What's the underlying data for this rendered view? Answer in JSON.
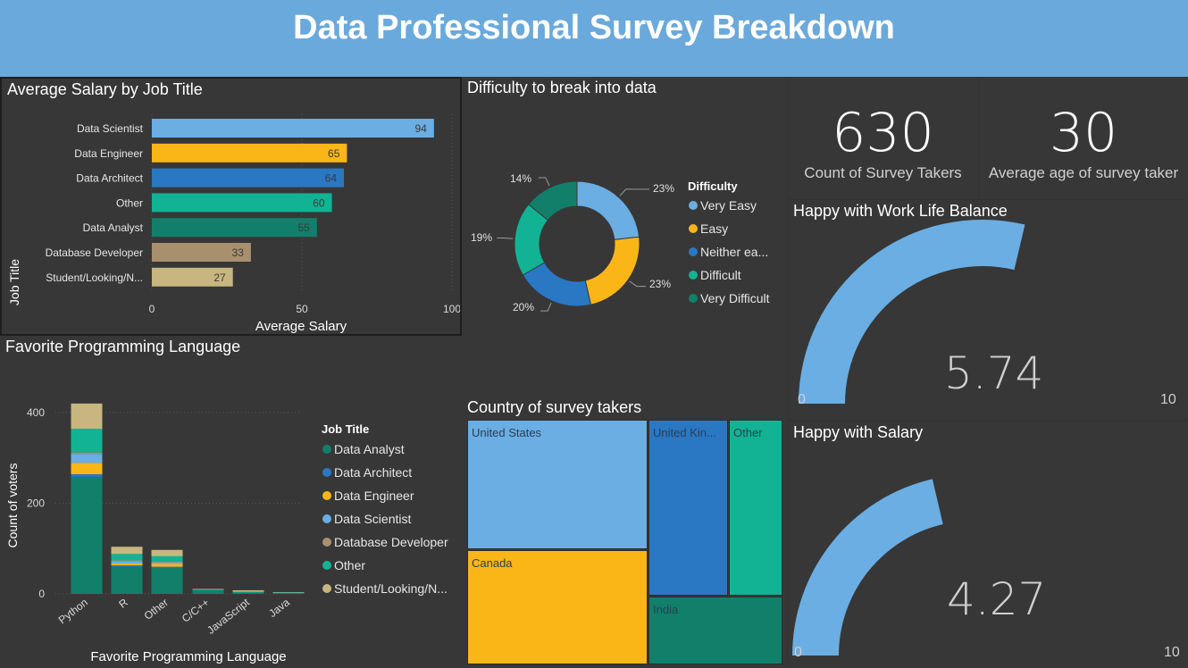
{
  "header": {
    "title": "Data Professional Survey Breakdown"
  },
  "colors": {
    "header_bg": "#6aa9dc",
    "panel_bg": "#373737",
    "light_blue": "#6aaee3",
    "gold": "#fab617",
    "blue": "#2a77c4",
    "teal": "#11b394",
    "dark_teal": "#127f6b",
    "tan": "#a8906f",
    "khaki": "#c7b67f"
  },
  "salary": {
    "title": "Average Salary by Job Title",
    "chart_data": {
      "type": "bar",
      "orientation": "horizontal",
      "categories": [
        "Data Scientist",
        "Data Engineer",
        "Data Architect",
        "Other",
        "Data Analyst",
        "Database Developer",
        "Student/Looking/N..."
      ],
      "values": [
        94,
        65,
        64,
        60,
        55,
        33,
        27
      ],
      "colors": [
        "#6aaee3",
        "#fab617",
        "#2a77c4",
        "#11b394",
        "#127f6b",
        "#a8906f",
        "#c7b67f"
      ],
      "xlabel": "Average Salary",
      "ylabel": "Job Title",
      "xlim": [
        0,
        100
      ],
      "xticks": [
        "0",
        "50",
        "100"
      ],
      "grid": true
    }
  },
  "difficulty": {
    "title": "Difficulty to break into data",
    "chart_data": {
      "type": "pie",
      "donut": true,
      "legend_title": "Difficulty",
      "labels": [
        "Very Easy",
        "Easy",
        "Neither ea...",
        "Difficult",
        "Very Difficult"
      ],
      "values": [
        23,
        23,
        20,
        19,
        14
      ],
      "percent_labels": [
        "23%",
        "23%",
        "20%",
        "19%",
        "14%"
      ],
      "colors": [
        "#6aaee3",
        "#fab617",
        "#2a77c4",
        "#11b394",
        "#127f6b"
      ],
      "legend_position": "right"
    }
  },
  "kpis": {
    "count": {
      "value": "630",
      "label": "Count of Survey Takers"
    },
    "age": {
      "value": "30",
      "label": "Average age of survey taker"
    }
  },
  "work_life": {
    "title": "Happy with Work Life Balance",
    "value": 5.74,
    "value_label": "5.74",
    "min": "0",
    "max": "10"
  },
  "happy_salary": {
    "title": "Happy with Salary",
    "value": 4.27,
    "value_label": "4.27",
    "min": "0",
    "max": "10"
  },
  "languages": {
    "title": "Favorite Programming Language",
    "chart_data": {
      "type": "bar",
      "stacked": true,
      "categories": [
        "Python",
        "R",
        "Other",
        "C/C++",
        "JavaScript",
        "Java"
      ],
      "series": [
        {
          "name": "Data Analyst",
          "color": "#127f6b",
          "values": [
            258,
            60,
            58,
            8,
            3,
            2
          ]
        },
        {
          "name": "Data Architect",
          "color": "#2a77c4",
          "values": [
            6,
            3,
            2,
            0,
            0,
            0
          ]
        },
        {
          "name": "Data Engineer",
          "color": "#fab617",
          "values": [
            25,
            4,
            6,
            0,
            0,
            0
          ]
        },
        {
          "name": "Data Scientist",
          "color": "#6aaee3",
          "values": [
            20,
            5,
            3,
            0,
            0,
            0
          ]
        },
        {
          "name": "Database Developer",
          "color": "#a8906f",
          "values": [
            3,
            2,
            2,
            0,
            0,
            0
          ]
        },
        {
          "name": "Other",
          "color": "#11b394",
          "values": [
            52,
            14,
            12,
            2,
            2,
            1
          ]
        },
        {
          "name": "Student/Looking/N...",
          "color": "#c7b67f",
          "values": [
            56,
            16,
            14,
            1,
            3,
            1
          ]
        }
      ],
      "legend_title": "Job Title",
      "legend_position": "right",
      "xlabel": "Favorite Programming Language",
      "ylabel": "Count of voters",
      "ylim": [
        0,
        440
      ],
      "yticks": [
        "0",
        "200",
        "400"
      ],
      "grid": true
    }
  },
  "country": {
    "title": "Country of survey takers",
    "chart_data": {
      "type": "treemap",
      "labels": [
        "United States",
        "Canada",
        "United Kin...",
        "Other",
        "India"
      ],
      "colors": [
        "#6aaee3",
        "#fab617",
        "#2a77c4",
        "#11b394",
        "#127f6b"
      ]
    }
  }
}
